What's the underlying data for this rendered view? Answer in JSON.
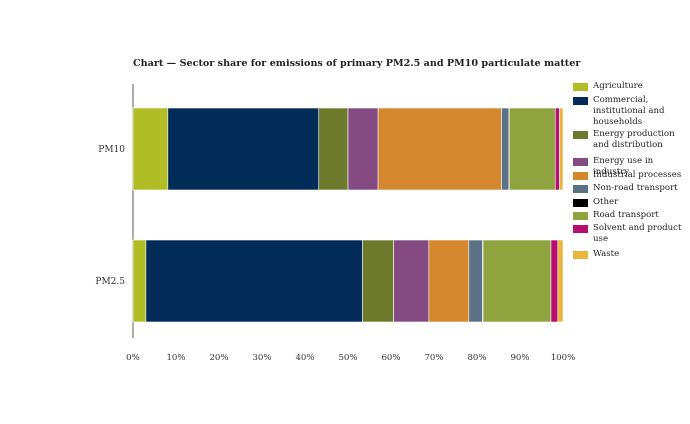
{
  "chart_data": {
    "type": "bar",
    "orientation": "horizontal",
    "stacked": true,
    "normalized": true,
    "title": "Chart — Sector share for emissions of primary PM2.5 and PM10 particulate matter",
    "categories": [
      "PM10",
      "PM2.5"
    ],
    "x_ticks": [
      "0%",
      "10%",
      "20%",
      "30%",
      "40%",
      "50%",
      "60%",
      "70%",
      "80%",
      "90%",
      "100%"
    ],
    "xlim": [
      0,
      100
    ],
    "grid": false,
    "legend_position": "right",
    "series": [
      {
        "name": "Agriculture",
        "color": "#b0bd24",
        "values": [
          8.1,
          3.0
        ]
      },
      {
        "name": "Commercial, institutional and households",
        "color": "#022b57",
        "values": [
          35.1,
          50.4
        ]
      },
      {
        "name": "Energy production and distribution",
        "color": "#6e7a2b",
        "values": [
          6.8,
          7.2
        ]
      },
      {
        "name": "Energy use in industry",
        "color": "#844b82",
        "values": [
          7.0,
          8.2
        ]
      },
      {
        "name": "Industrial processes",
        "color": "#d4872c",
        "values": [
          28.7,
          9.3
        ]
      },
      {
        "name": "Non-road transport",
        "color": "#5a7188",
        "values": [
          1.7,
          3.2
        ]
      },
      {
        "name": "Other",
        "color": "#000000",
        "values": [
          0.1,
          0.1
        ]
      },
      {
        "name": "Road transport",
        "color": "#8fa33e",
        "values": [
          10.7,
          15.8
        ]
      },
      {
        "name": "Solvent and product use",
        "color": "#b70e71",
        "values": [
          1.0,
          1.6
        ]
      },
      {
        "name": "Waste",
        "color": "#e8b63b",
        "values": [
          0.8,
          1.2
        ]
      }
    ]
  }
}
